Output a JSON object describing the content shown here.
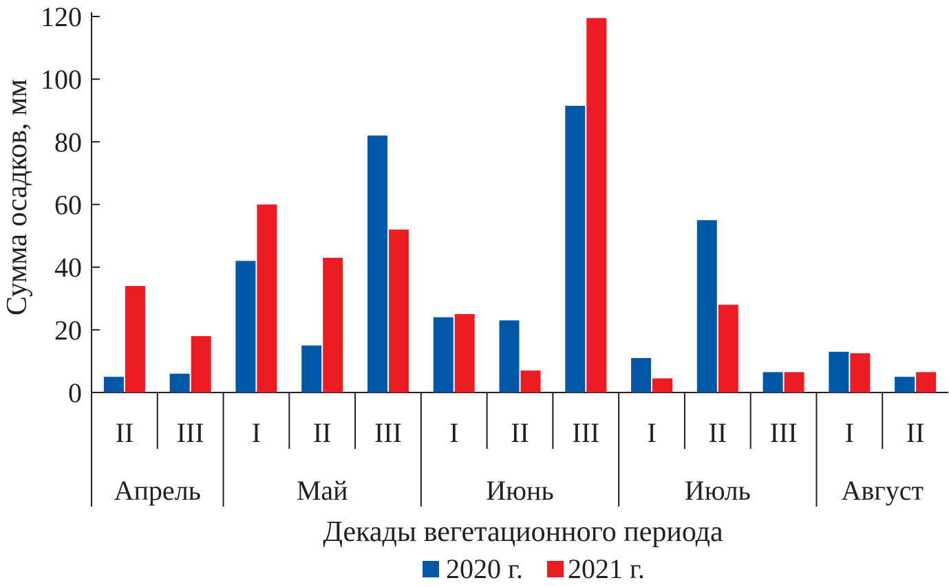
{
  "chart_data": {
    "type": "bar",
    "title": "",
    "ylabel": "Сумма осадков, мм",
    "xlabel": "Декады вегетационного периода",
    "ylim": [
      0,
      120
    ],
    "yticks": [
      0,
      20,
      40,
      60,
      80,
      100,
      120
    ],
    "grid": false,
    "legend_position": "bottom",
    "categories": [
      "II",
      "III",
      "I",
      "II",
      "III",
      "I",
      "II",
      "III",
      "I",
      "II",
      "III",
      "I",
      "II"
    ],
    "groups": [
      {
        "label": "Апрель",
        "count": 2
      },
      {
        "label": "Май",
        "count": 3
      },
      {
        "label": "Июнь",
        "count": 3
      },
      {
        "label": "Июль",
        "count": 3
      },
      {
        "label": "Август",
        "count": 2
      }
    ],
    "series": [
      {
        "name": "2020 г.",
        "color": "#0057a8",
        "values": [
          5,
          6,
          42,
          15,
          82,
          24,
          23,
          91.5,
          11,
          55,
          6.5,
          13,
          5
        ]
      },
      {
        "name": "2021 г.",
        "color": "#ed1c24",
        "values": [
          34,
          18,
          60,
          43,
          52,
          25,
          7,
          119.5,
          4.5,
          28,
          6.5,
          12.5,
          6.5
        ]
      }
    ]
  }
}
